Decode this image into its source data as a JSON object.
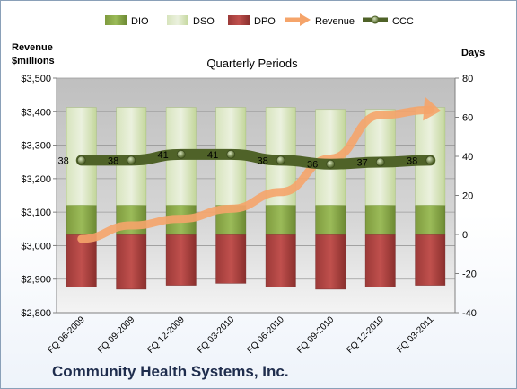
{
  "footer": {
    "company": "Community Health Systems, Inc."
  },
  "chart_data": {
    "type": "bar",
    "title": "Quarterly Periods",
    "left_axis": {
      "label_line1": "Revenue",
      "label_line2": "$millions",
      "range": [
        2800,
        3500
      ],
      "ticks": [
        "$2,800",
        "$2,900",
        "$3,000",
        "$3,100",
        "$3,200",
        "$3,300",
        "$3,400",
        "$3,500"
      ]
    },
    "right_axis": {
      "label": "Days",
      "range": [
        -40,
        80
      ],
      "ticks": [
        "-40",
        "-20",
        "0",
        "20",
        "40",
        "60",
        "80"
      ]
    },
    "categories": [
      "FQ 06-2009",
      "FQ 09-2009",
      "FQ 12-2009",
      "FQ 03-2010",
      "FQ 06-2010",
      "FQ 09-2010",
      "FQ 12-2010",
      "FQ 03-2011"
    ],
    "legend": {
      "position": "top",
      "items": [
        {
          "name": "DIO",
          "color": "#77933c"
        },
        {
          "name": "DSO",
          "color": "#c3d69b"
        },
        {
          "name": "DPO",
          "color": "#953735"
        },
        {
          "name": "Revenue",
          "color": "#f5a46a"
        },
        {
          "name": "CCC",
          "color": "#4f6228"
        }
      ]
    },
    "series": [
      {
        "name": "DIO",
        "axis": "right",
        "values": [
          15,
          15,
          15,
          15,
          15,
          15,
          15,
          15
        ]
      },
      {
        "name": "DSO",
        "axis": "right",
        "values": [
          50,
          50,
          50,
          50,
          50,
          49,
          49,
          50
        ]
      },
      {
        "name": "DPO",
        "axis": "right",
        "values": [
          -27,
          -28,
          -26,
          -25,
          -27,
          -28,
          -27,
          -26
        ]
      },
      {
        "name": "Revenue",
        "axis": "left",
        "values": [
          3020,
          3060,
          3080,
          3110,
          3160,
          3260,
          3390,
          3405
        ]
      },
      {
        "name": "CCC",
        "axis": "right",
        "values": [
          38,
          38,
          41,
          41,
          38,
          36,
          37,
          38
        ]
      }
    ],
    "data_labels": [
      "38",
      "38",
      "41",
      "41",
      "38",
      "36",
      "37",
      "38"
    ],
    "grid": true
  }
}
